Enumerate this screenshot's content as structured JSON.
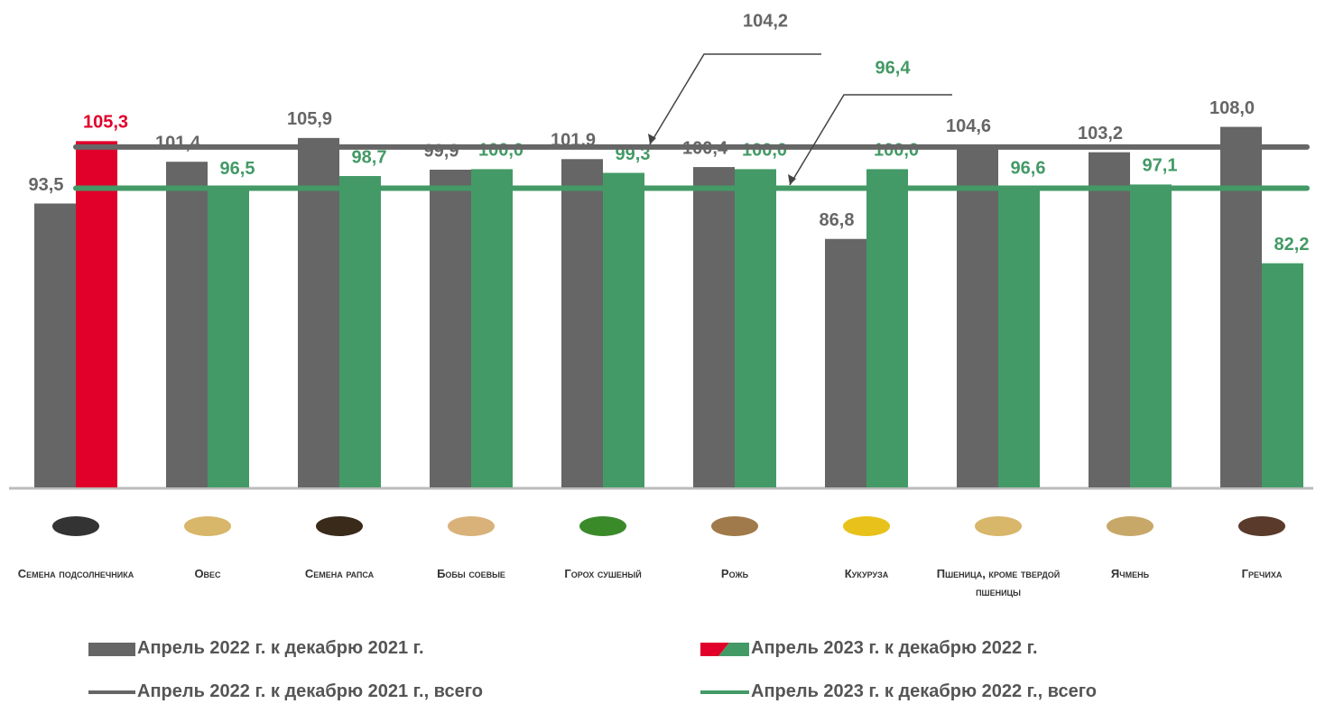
{
  "chart_data": {
    "type": "bar",
    "categories": [
      "Семена подсолнечника",
      "Овес",
      "Семена рапса",
      "Бобы соевые",
      "Горох сушеный",
      "Рожь",
      "Кукуруза",
      "Пшеница, кроме твердой пшеницы",
      "Ячмень",
      "Гречиха"
    ],
    "series": [
      {
        "name": "Апрель 2022 г. к декабрю 2021 г.",
        "color": "#666666",
        "values": [
          93.5,
          101.4,
          105.9,
          99.9,
          101.9,
          100.4,
          86.8,
          104.6,
          103.2,
          108.0
        ],
        "value_labels": [
          "93,5",
          "101,4",
          "105,9",
          "99,9",
          "101,9",
          "100,4",
          "86,8",
          "104,6",
          "103,2",
          "108,0"
        ]
      },
      {
        "name": "Апрель 2023 г. к декабрю 2022 г.",
        "color": "#439a66",
        "colors": [
          "#e0002a",
          "#439a66",
          "#439a66",
          "#439a66",
          "#439a66",
          "#439a66",
          "#439a66",
          "#439a66",
          "#439a66",
          "#439a66"
        ],
        "values": [
          105.3,
          96.5,
          98.7,
          100.0,
          99.3,
          100.0,
          100.0,
          96.6,
          97.1,
          82.2
        ],
        "value_labels": [
          "105,3",
          "96,5",
          "98,7",
          "100,0",
          "99,3",
          "100,0",
          "100,0",
          "96,6",
          "97,1",
          "82,2"
        ]
      }
    ],
    "lines": [
      {
        "name": "Апрель 2022 г. к декабрю 2021 г., всего",
        "color": "#666666",
        "value": 104.2,
        "value_label": "104,2"
      },
      {
        "name": "Апрель 2023 г. к декабрю 2022 г., всего",
        "color": "#439a66",
        "value": 96.4,
        "value_label": "96,4"
      }
    ],
    "ylim": [
      39.8,
      132
    ]
  }
}
